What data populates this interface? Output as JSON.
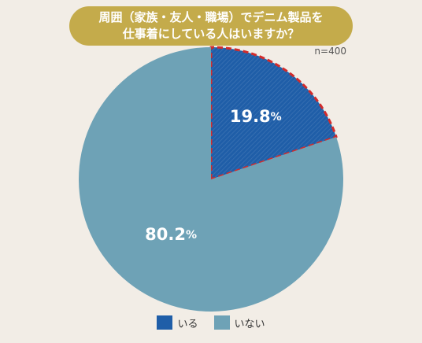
{
  "header": {
    "title_line1": "周囲（家族・友人・職場）でデニム製品を",
    "title_line2": "仕事着にしている人はいますか？",
    "sample_size": "n=400"
  },
  "colors": {
    "background": "#f2ede6",
    "title_bg": "#c4ab4b",
    "yes": "#1f5ea8",
    "no": "#6ea2b6",
    "dash": "#d22b2b"
  },
  "chart_data": {
    "type": "pie",
    "title": "周囲（家族・友人・職場）でデニム製品を仕事着にしている人はいますか？",
    "note": "n=400",
    "unit": "%",
    "slices": [
      {
        "label": "いる",
        "value": 19.8,
        "value_text": "19.8",
        "color": "#1f5ea8",
        "highlighted": true
      },
      {
        "label": "いない",
        "value": 80.2,
        "value_text": "80.2",
        "color": "#6ea2b6",
        "highlighted": false
      }
    ],
    "legend": {
      "position": "bottom"
    }
  }
}
